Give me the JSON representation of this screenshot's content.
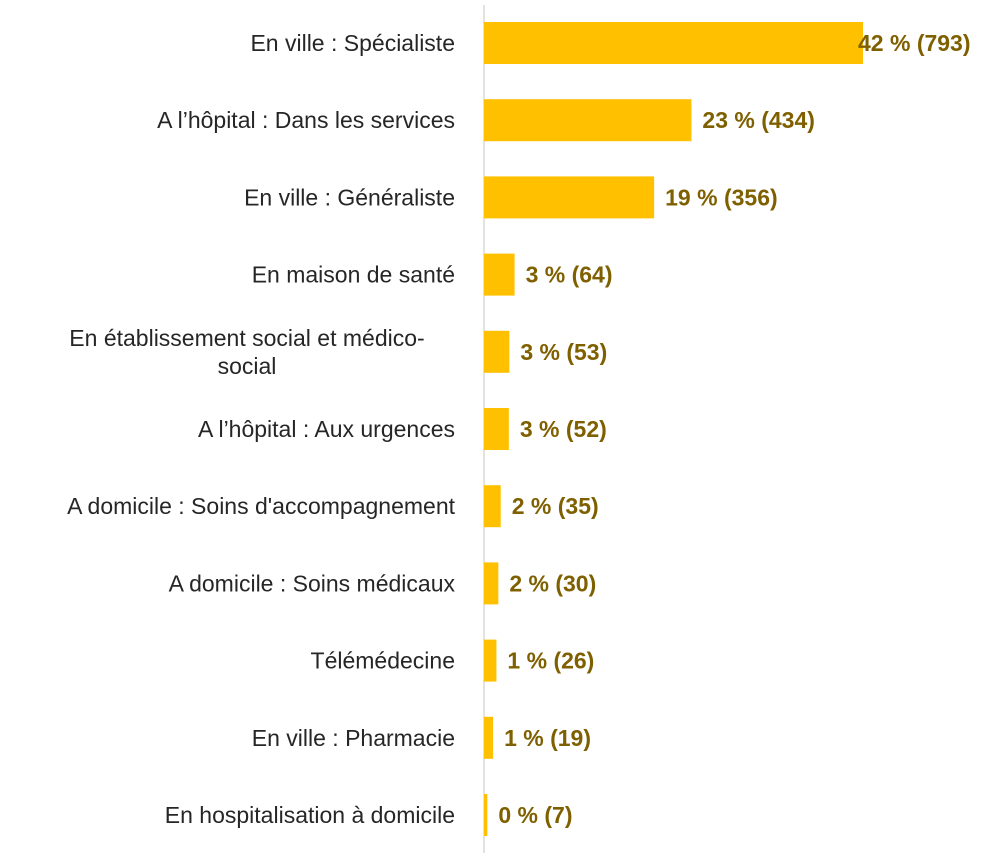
{
  "chart_data": {
    "type": "bar",
    "orientation": "horizontal",
    "categories": [
      "En ville : Spécialiste",
      "A l’hôpital : Dans les services",
      "En ville : Généraliste",
      "En maison de santé",
      "En établissement social et médico-social",
      "A l’hôpital : Aux urgences",
      "A domicile : Soins d'accompagnement",
      "A domicile : Soins médicaux",
      "Télémédecine",
      "En ville : Pharmacie",
      "En hospitalisation à domicile"
    ],
    "category_lines": [
      [
        "En ville : Spécialiste"
      ],
      [
        "A l’hôpital : Dans les services"
      ],
      [
        "En ville : Généraliste"
      ],
      [
        "En maison de santé"
      ],
      [
        "En établissement social et médico-",
        "social"
      ],
      [
        "A l’hôpital : Aux urgences"
      ],
      [
        "A domicile : Soins d'accompagnement"
      ],
      [
        "A domicile : Soins médicaux"
      ],
      [
        "Télémédecine"
      ],
      [
        "En ville : Pharmacie"
      ],
      [
        "En hospitalisation à domicile"
      ]
    ],
    "values": [
      793,
      434,
      356,
      64,
      53,
      52,
      35,
      30,
      26,
      19,
      7
    ],
    "data_labels": [
      "42 % (793)",
      "23 % (434)",
      "19 % (356)",
      "3 % (64)",
      "3 % (53)",
      "3 % (52)",
      "2 % (35)",
      "2 % (30)",
      "1 % (26)",
      "1 % (19)",
      "0 % (7)"
    ],
    "xlim": [
      0,
      793
    ],
    "grid": false,
    "legend": "none",
    "colors": {
      "bar": "#FFC000",
      "data_label": "#7F6000",
      "category_label": "#262626",
      "axis_line": "#D9D9D9"
    }
  }
}
